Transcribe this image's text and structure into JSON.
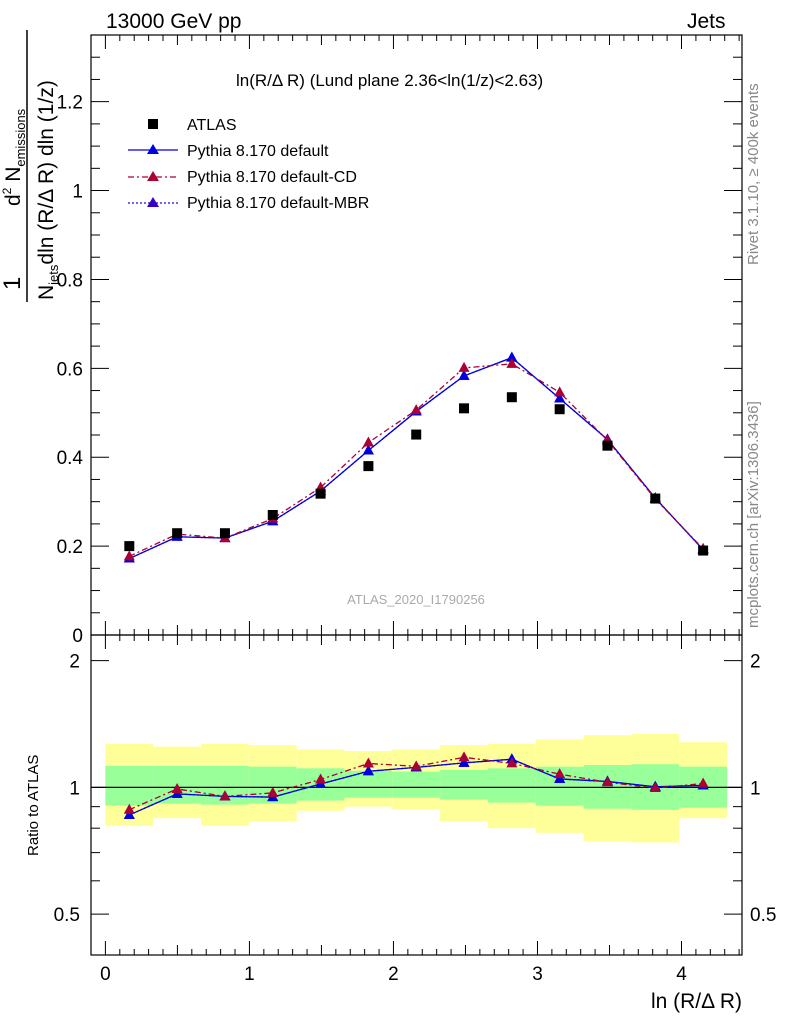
{
  "header": {
    "left": "13000 GeV pp",
    "right": "Jets"
  },
  "side": {
    "rivet": "Rivet 3.1.10, ≥ 400k events",
    "mcplots": "mcplots.cern.ch [arXiv:1306.3436]"
  },
  "plot_title": "ln(R/Δ R) (Lund plane 2.36<ln(1/z)<2.63)",
  "watermark": "ATLAS_2020_I1790256",
  "y_label_main": "1/N_jets d²N_emissions / dln(R/ΔR) dln(1/z)",
  "y_label_ratio": "Ratio to ATLAS",
  "x_label": "ln (R/Δ R)",
  "colors": {
    "atlas": "#000000",
    "default": "#0000dd",
    "cd": "#aa0033",
    "mbr": "#3300cc",
    "band_inner": "#99ff99",
    "band_outer": "#ffff99"
  },
  "chart_data": {
    "type": "scatter",
    "x": [
      0.166,
      0.498,
      0.83,
      1.162,
      1.494,
      1.826,
      2.158,
      2.49,
      2.822,
      3.154,
      3.486,
      3.818,
      4.15
    ],
    "x_edges": [
      0,
      0.332,
      0.664,
      0.996,
      1.328,
      1.66,
      1.992,
      2.324,
      2.656,
      2.988,
      3.32,
      3.652,
      3.984,
      4.316
    ],
    "xlim": [
      -0.1,
      4.42
    ],
    "ylim_main": [
      0,
      1.35
    ],
    "ylim_ratio": [
      0.4,
      2.3
    ],
    "ratio_log": true,
    "x_ticks": [
      "0",
      "1",
      "2",
      "3",
      "4"
    ],
    "y_ticks_main": [
      "0",
      "0.2",
      "0.4",
      "0.6",
      "0.8",
      "1",
      "1.2"
    ],
    "y_ticks_ratio": [
      "0.5",
      "1",
      "2"
    ],
    "series": [
      {
        "name": "ATLAS",
        "values": [
          0.2,
          0.229,
          0.229,
          0.27,
          0.318,
          0.38,
          0.451,
          0.51,
          0.535,
          0.508,
          0.426,
          0.307,
          0.19
        ]
      },
      {
        "name": "Pythia 8.170 default",
        "values": [
          0.172,
          0.221,
          0.218,
          0.256,
          0.324,
          0.415,
          0.503,
          0.583,
          0.624,
          0.532,
          0.44,
          0.308,
          0.192
        ]
      },
      {
        "name": "Pythia 8.170 default-CD",
        "values": [
          0.177,
          0.227,
          0.218,
          0.262,
          0.332,
          0.433,
          0.506,
          0.601,
          0.61,
          0.546,
          0.438,
          0.306,
          0.194
        ]
      },
      {
        "name": "Pythia 8.170 default-MBR",
        "values": [
          0.172,
          0.221,
          0.218,
          0.256,
          0.324,
          0.415,
          0.503,
          0.583,
          0.624,
          0.532,
          0.44,
          0.308,
          0.192
        ]
      }
    ],
    "band_inner": {
      "lo": [
        0.905,
        0.915,
        0.91,
        0.915,
        0.93,
        0.945,
        0.945,
        0.935,
        0.92,
        0.905,
        0.89,
        0.885,
        0.895
      ],
      "hi": [
        1.125,
        1.125,
        1.125,
        1.12,
        1.11,
        1.095,
        1.09,
        1.1,
        1.11,
        1.12,
        1.13,
        1.135,
        1.12
      ]
    },
    "band_outer": {
      "lo": [
        0.81,
        0.845,
        0.81,
        0.83,
        0.88,
        0.9,
        0.885,
        0.83,
        0.8,
        0.78,
        0.745,
        0.74,
        0.845
      ],
      "hi": [
        1.27,
        1.25,
        1.27,
        1.26,
        1.23,
        1.22,
        1.23,
        1.26,
        1.27,
        1.3,
        1.33,
        1.34,
        1.28
      ]
    }
  }
}
